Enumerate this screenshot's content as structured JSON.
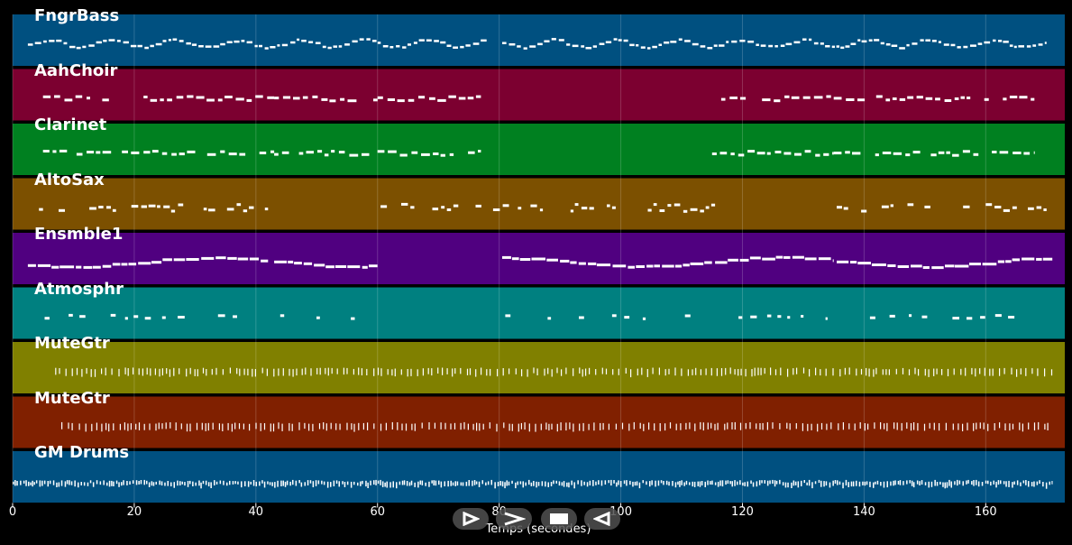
{
  "chart_data": {
    "type": "piano-roll",
    "x_range": [
      0,
      173
    ],
    "xlabel": "Temps (secondes)",
    "xticks": [
      {
        "value": 0,
        "label": "0"
      },
      {
        "value": 20,
        "label": "20"
      },
      {
        "value": 40,
        "label": "40"
      },
      {
        "value": 60,
        "label": "60"
      },
      {
        "value": 80,
        "label": "80"
      },
      {
        "value": 100,
        "label": "100"
      },
      {
        "value": 120,
        "label": "120"
      },
      {
        "value": 140,
        "label": "140"
      },
      {
        "value": 160,
        "label": "160"
      }
    ],
    "tracks": [
      {
        "name": "FngrBass",
        "color": "#005080",
        "style": "dense",
        "active": [
          [
            2.5,
            78
          ],
          [
            80.5,
            170
          ]
        ]
      },
      {
        "name": "AahChoir",
        "color": "#7c0030",
        "style": "phrases",
        "active": [
          [
            5,
            43
          ],
          [
            43,
            60
          ],
          [
            60,
            77
          ],
          [
            116.5,
            135
          ],
          [
            135,
            168
          ]
        ]
      },
      {
        "name": "Clarinet",
        "color": "#008020",
        "style": "phrases",
        "active": [
          [
            5,
            43
          ],
          [
            43,
            60
          ],
          [
            60,
            77
          ],
          [
            115,
            135
          ],
          [
            135,
            168
          ]
        ]
      },
      {
        "name": "AltoSax",
        "color": "#7c5000",
        "style": "blocks",
        "active": [
          [
            2.5,
            42
          ],
          [
            60.5,
            115.5
          ],
          [
            135.5,
            170
          ]
        ]
      },
      {
        "name": "Ensmble1",
        "color": "#500080",
        "style": "sustained",
        "active": [
          [
            2.5,
            42
          ],
          [
            43,
            60
          ],
          [
            80.5,
            115
          ],
          [
            115.5,
            135
          ],
          [
            135.5,
            171
          ]
        ]
      },
      {
        "name": "Atmosphr",
        "color": "#008080",
        "style": "sparse",
        "active": [
          [
            2.5,
            37
          ],
          [
            44,
            60
          ],
          [
            81,
            114
          ],
          [
            117,
            134
          ],
          [
            136,
            165
          ]
        ]
      },
      {
        "name": "MuteGtr",
        "color": "#808000",
        "style": "ticks",
        "active": [
          [
            7,
            171
          ]
        ]
      },
      {
        "name": "MuteGtr",
        "color": "#802000",
        "style": "ticks",
        "active": [
          [
            8,
            171
          ]
        ]
      },
      {
        "name": "GM Drums",
        "color": "#005080",
        "style": "drums",
        "active": [
          [
            0,
            171
          ]
        ]
      }
    ]
  },
  "playback_controls": [
    {
      "name": "play-icon",
      "glyph": "⊳"
    },
    {
      "name": "fast-forward-icon",
      "glyph": "⩾"
    },
    {
      "name": "stop-icon",
      "glyph": "■"
    },
    {
      "name": "rewind-icon",
      "glyph": "⊲"
    }
  ]
}
